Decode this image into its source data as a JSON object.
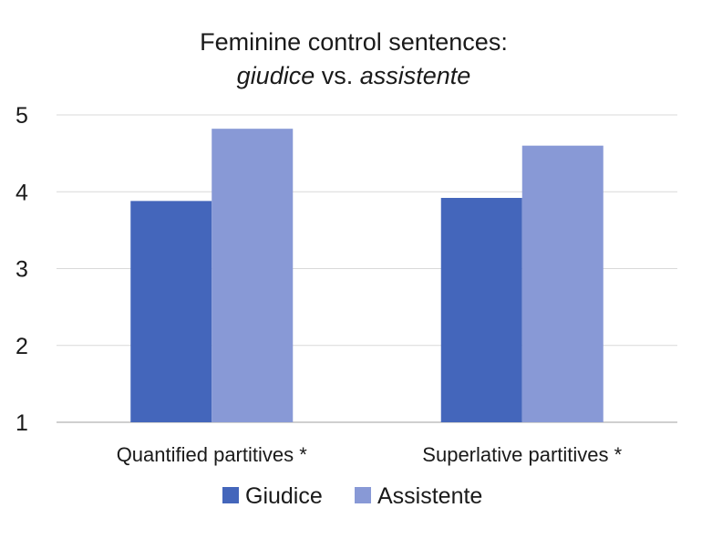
{
  "chart_data": {
    "type": "bar",
    "title_line1": "Feminine control sentences:",
    "title_line2_a": "giudice",
    "title_line2_b": " vs. ",
    "title_line2_c": "assistente",
    "categories": [
      "Quantified partitives *",
      "Superlative partitives *"
    ],
    "series": [
      {
        "name": "Giudice",
        "values": [
          3.88,
          3.92
        ],
        "color": "#4466bb"
      },
      {
        "name": "Assistente",
        "values": [
          4.82,
          4.6
        ],
        "color": "#8899d6"
      }
    ],
    "ylim": [
      1,
      5
    ],
    "yticks": [
      1,
      2,
      3,
      4,
      5
    ],
    "grid": true,
    "legend_position": "bottom"
  }
}
